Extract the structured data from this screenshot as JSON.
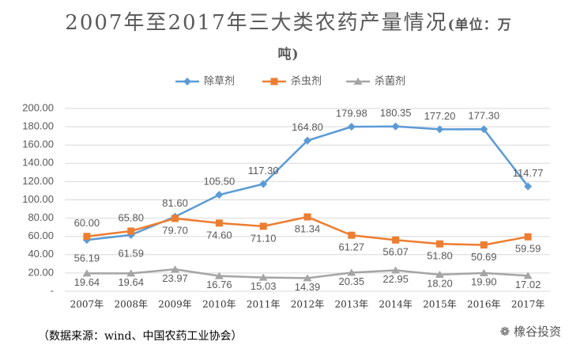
{
  "chart_data": {
    "type": "line",
    "title": "2007年至2017年三大类农药产量情况",
    "unit": "(单位：万吨)",
    "source": "（数据来源：wind、中国农药工业协会）",
    "watermark": "橡谷投资",
    "categories": [
      "2007年",
      "2008年",
      "2009年",
      "2010年",
      "2011年",
      "2012年",
      "2013年",
      "2014年",
      "2015年",
      "2016年",
      "2017年"
    ],
    "series": [
      {
        "name": "除草剂",
        "color": "#5b9bd5",
        "marker": "diamond",
        "values": [
          56.19,
          61.59,
          81.6,
          105.5,
          117.3,
          164.8,
          179.98,
          180.35,
          177.2,
          177.3,
          114.77
        ],
        "value_labels": [
          "56.19",
          "61.59",
          "81.60",
          "105.50",
          "117.30",
          "164.80",
          "179.98",
          "180.35",
          "177.20",
          "177.30",
          "114.77"
        ]
      },
      {
        "name": "杀虫剂",
        "color": "#ed7d31",
        "marker": "square",
        "values": [
          60,
          65.8,
          79.7,
          74.6,
          71.1,
          81.34,
          61.27,
          56.07,
          51.8,
          50.69,
          59.59
        ],
        "value_labels": [
          "60.00",
          "65.80",
          "79.70",
          "74.60",
          "71.10",
          "81.34",
          "61.27",
          "56.07",
          "51.80",
          "50.69",
          "59.59"
        ]
      },
      {
        "name": "杀菌剂",
        "color": "#a5a5a5",
        "marker": "triangle",
        "values": [
          19.64,
          19.64,
          23.97,
          16.76,
          15.03,
          14.39,
          20.35,
          22.95,
          18.2,
          19.9,
          17.02
        ],
        "value_labels": [
          "19.64",
          "19.64",
          "23.97",
          "16.76",
          "15.03",
          "14.39",
          "20.35",
          "22.95",
          "18.20",
          "19.90",
          "17.02"
        ]
      }
    ],
    "ylim": [
      0,
      200
    ],
    "yticks": [
      {
        "value": 0,
        "label": "-"
      },
      {
        "value": 20,
        "label": "20.00"
      },
      {
        "value": 40,
        "label": "40.00"
      },
      {
        "value": 60,
        "label": "60.00"
      },
      {
        "value": 80,
        "label": "80.00"
      },
      {
        "value": 100,
        "label": "100.00"
      },
      {
        "value": 120,
        "label": "120.00"
      },
      {
        "value": 140,
        "label": "140.00"
      },
      {
        "value": 160,
        "label": "160.00"
      },
      {
        "value": 180,
        "label": "180.00"
      },
      {
        "value": 200,
        "label": "200.00"
      }
    ],
    "grid": true,
    "legend": "top"
  }
}
